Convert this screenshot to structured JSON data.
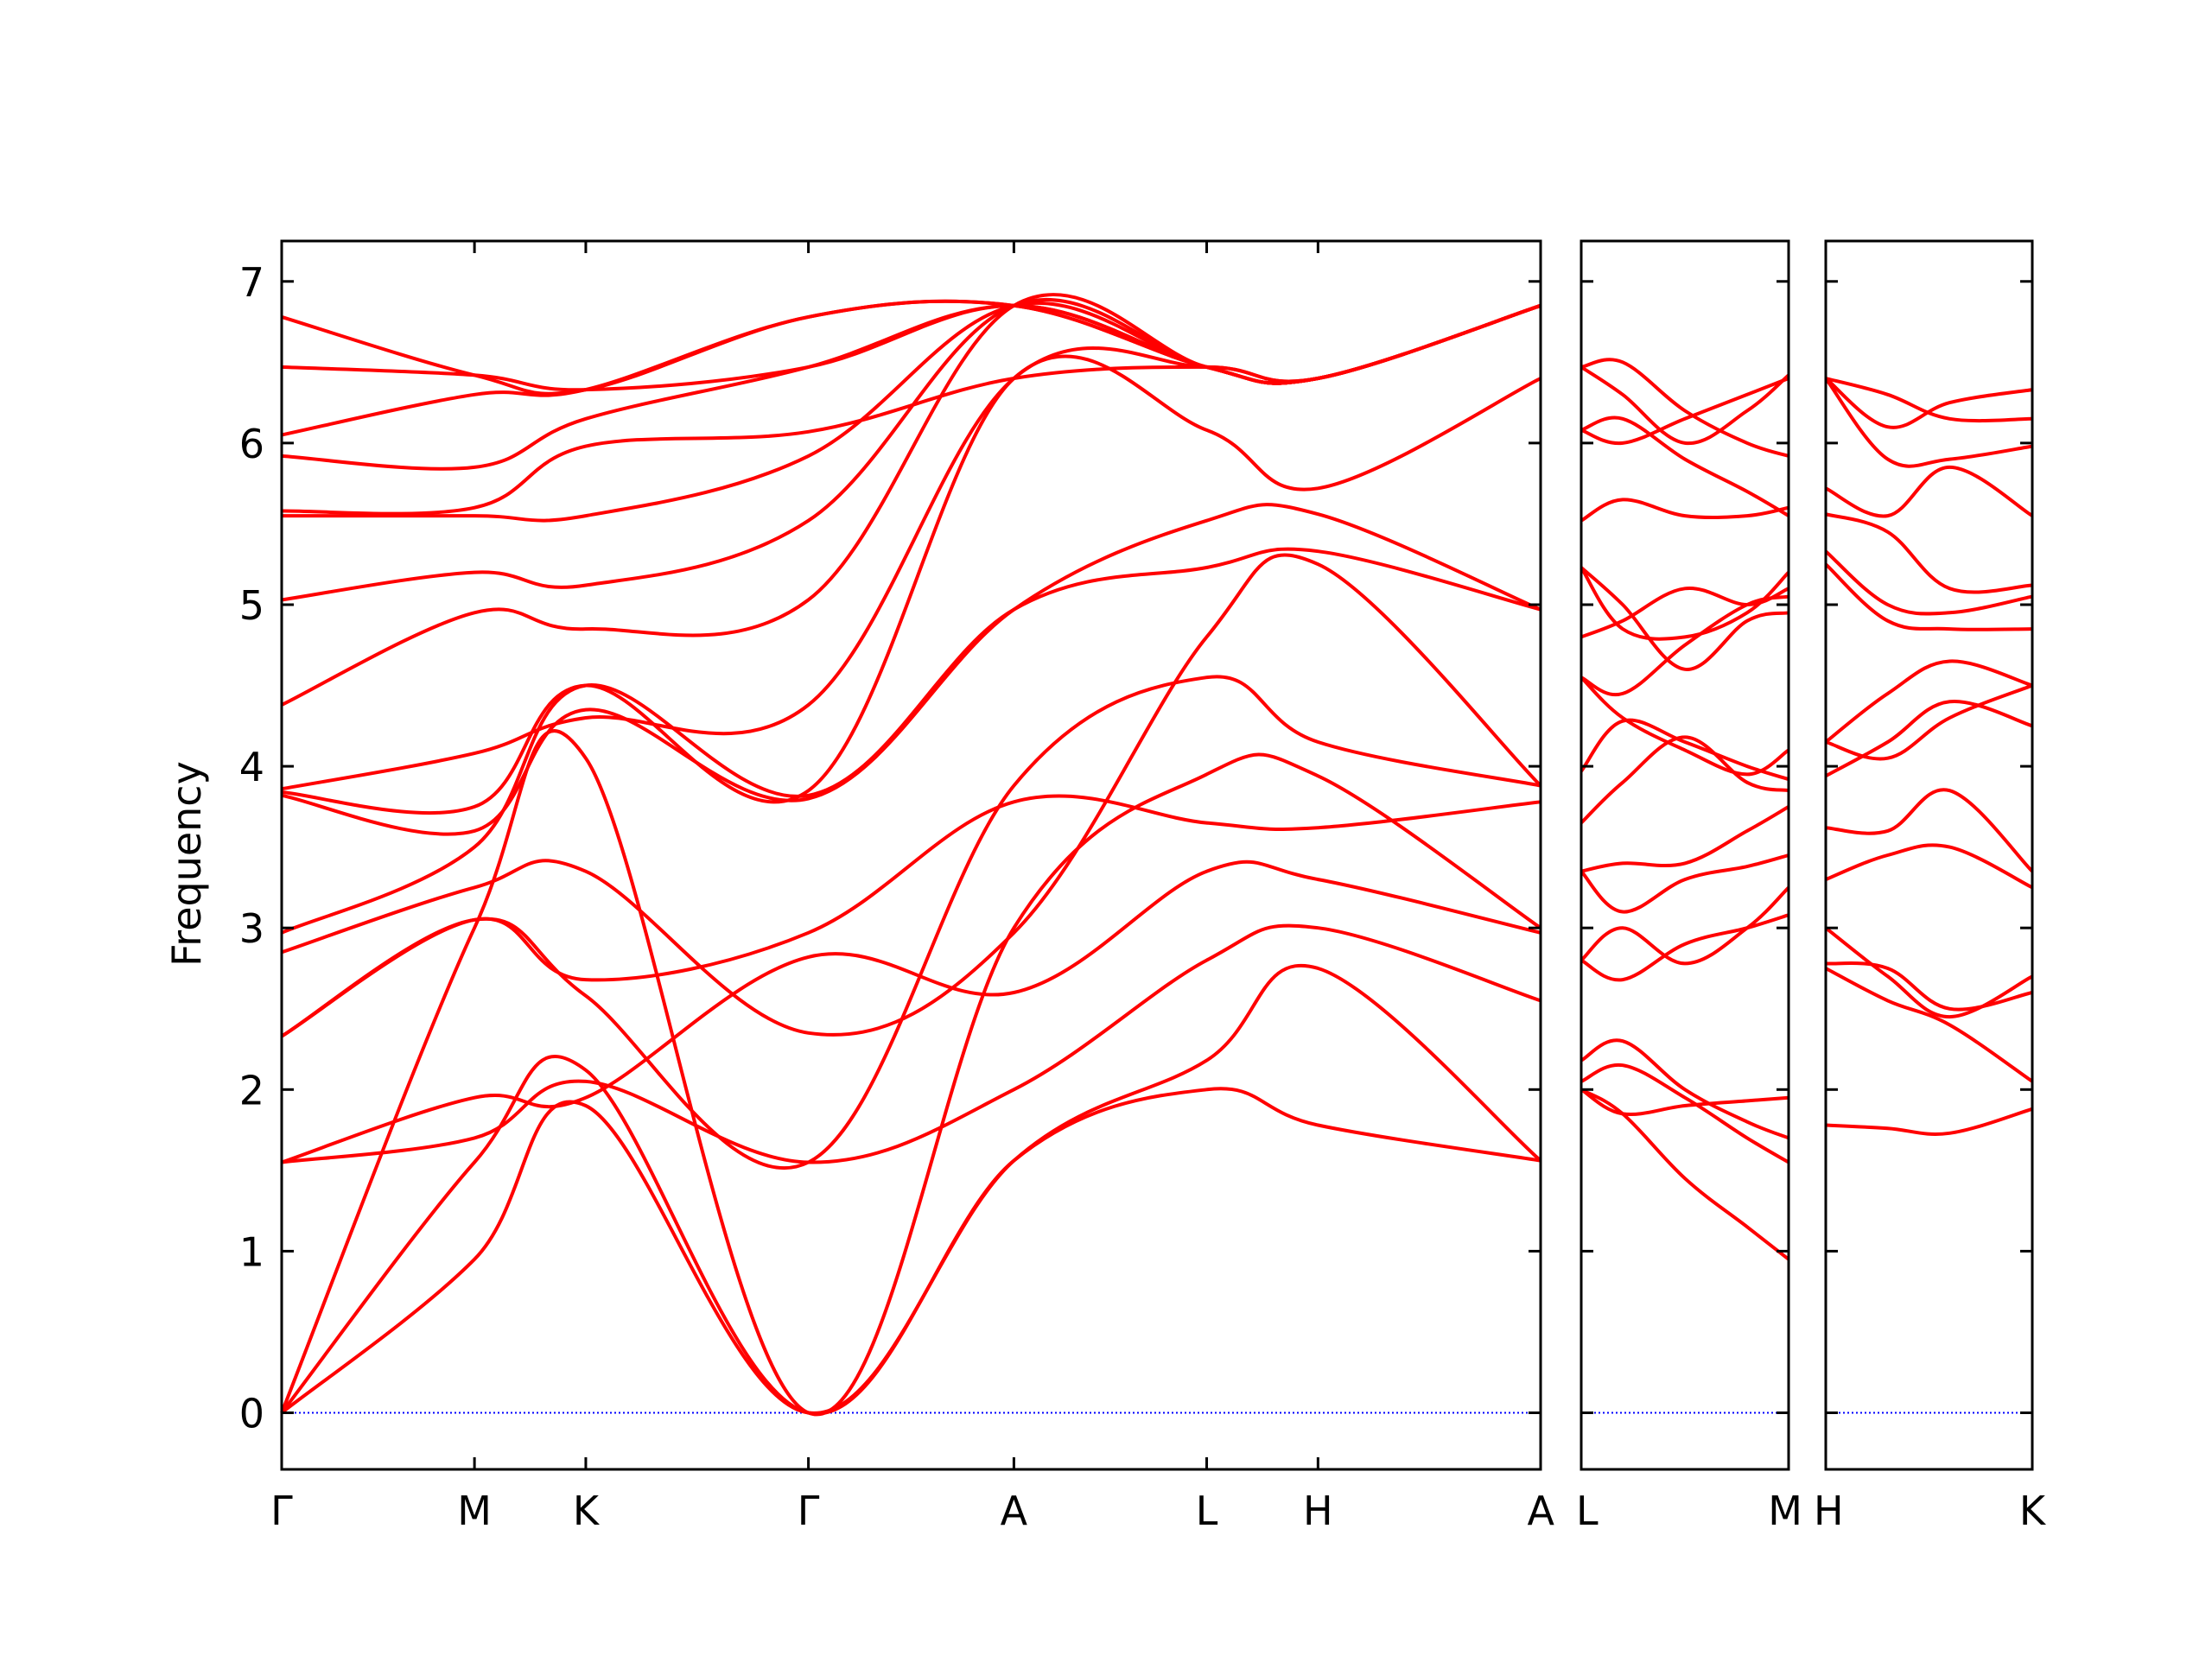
{
  "chart_data": {
    "type": "line",
    "title": "",
    "ylabel": "Frequency",
    "xlabel": "",
    "ylim": [
      -0.35,
      7.25
    ],
    "yticks": [
      0,
      1,
      2,
      3,
      4,
      5,
      6,
      7
    ],
    "grid": false,
    "legend": "none",
    "band_color": "#ff0000",
    "zero_line_color": "#0000ff",
    "panels": [
      {
        "ticks": [
          "Γ",
          "M",
          "K",
          "Γ",
          "A",
          "L",
          "H",
          "A"
        ],
        "tick_positions": [
          0.0,
          0.866,
          1.366,
          2.366,
          3.289,
          4.155,
          4.655,
          5.655
        ],
        "bands": [
          {
            "x": [
              0.0,
              0.866,
              1.366,
              2.366,
              3.289,
              4.155,
              4.655,
              5.655
            ],
            "y": [
              0.0,
              0.95,
              1.9,
              0.0,
              1.56,
              2.18,
              2.75,
              1.56
            ]
          },
          {
            "x": [
              0.0,
              0.866,
              1.366,
              2.366,
              3.289,
              4.155,
              4.655,
              5.655
            ],
            "y": [
              0.0,
              1.55,
              2.12,
              0.0,
              1.56,
              2.0,
              1.78,
              1.56
            ]
          },
          {
            "x": [
              0.0,
              0.866,
              1.366,
              2.366,
              3.289,
              4.155,
              4.655,
              5.655
            ],
            "y": [
              0.0,
              3.0,
              4.05,
              0.0,
              3.0,
              3.95,
              3.94,
              3.0
            ]
          },
          {
            "x": [
              0.0,
              0.866,
              1.366,
              2.366,
              3.289,
              4.155,
              4.655,
              5.655
            ],
            "y": [
              1.55,
              1.7,
              2.05,
              1.55,
              2.0,
              2.8,
              3.0,
              2.55
            ]
          },
          {
            "x": [
              0.0,
              0.866,
              1.366,
              2.366,
              3.289,
              4.155,
              4.655,
              5.655
            ],
            "y": [
              1.55,
              1.95,
              1.95,
              2.82,
              2.6,
              3.35,
              3.3,
              2.97
            ]
          },
          {
            "x": [
              0.0,
              0.866,
              1.366,
              2.366,
              3.289,
              4.155,
              4.655,
              5.655
            ],
            "y": [
              2.33,
              3.05,
              2.68,
              2.97,
              3.78,
              3.65,
              3.62,
              3.78
            ]
          },
          {
            "x": [
              0.0,
              0.866,
              1.366,
              2.366,
              3.289,
              4.155,
              4.655,
              5.655
            ],
            "y": [
              2.33,
              3.05,
              2.58,
              1.55,
              3.88,
              4.55,
              4.15,
              3.88
            ]
          },
          {
            "x": [
              0.0,
              0.866,
              1.366,
              2.366,
              3.289,
              4.155,
              4.655,
              5.655
            ],
            "y": [
              2.85,
              3.25,
              3.35,
              2.35,
              2.97,
              4.8,
              5.25,
              3.88
            ]
          },
          {
            "x": [
              0.0,
              0.866,
              1.366,
              2.366,
              3.289,
              4.155,
              4.655,
              5.655
            ],
            "y": [
              2.97,
              3.5,
              4.5,
              3.82,
              4.97,
              5.23,
              5.33,
              4.97
            ]
          },
          {
            "x": [
              0.0,
              0.866,
              1.366,
              2.366,
              3.289,
              4.155,
              4.655,
              5.655
            ],
            "y": [
              3.82,
              3.6,
              4.35,
              3.8,
              4.97,
              5.52,
              5.56,
              4.97
            ]
          },
          {
            "x": [
              0.0,
              0.866,
              1.366,
              2.366,
              3.289,
              4.155,
              4.655,
              5.655
            ],
            "y": [
              3.84,
              3.75,
              4.5,
              3.85,
              6.4,
              6.08,
              5.72,
              6.4
            ]
          },
          {
            "x": [
              0.0,
              0.866,
              1.366,
              2.366,
              3.289,
              4.155,
              4.655,
              5.655
            ],
            "y": [
              3.86,
              4.08,
              4.3,
              4.38,
              6.4,
              6.47,
              6.4,
              6.85
            ]
          },
          {
            "x": [
              0.0,
              0.866,
              1.366,
              2.366,
              3.289,
              4.155,
              4.655,
              5.655
            ],
            "y": [
              4.38,
              4.95,
              4.85,
              5.03,
              6.85,
              6.47,
              6.4,
              6.85
            ]
          },
          {
            "x": [
              0.0,
              0.866,
              1.366,
              2.366,
              3.289,
              4.155,
              4.655,
              5.655
            ],
            "y": [
              5.03,
              5.2,
              5.12,
              5.52,
              6.85,
              6.47,
              6.4,
              6.85
            ]
          },
          {
            "x": [
              0.0,
              0.866,
              1.366,
              2.366,
              3.289,
              4.155,
              4.655,
              5.655
            ],
            "y": [
              5.55,
              5.55,
              5.55,
              5.92,
              6.85,
              6.47,
              6.4,
              6.85
            ]
          },
          {
            "x": [
              0.0,
              0.866,
              1.366,
              2.366,
              3.289,
              4.155,
              4.655,
              5.655
            ],
            "y": [
              5.58,
              5.6,
              5.98,
              6.07,
              6.4,
              6.47,
              6.4,
              6.85
            ]
          },
          {
            "x": [
              0.0,
              0.866,
              1.366,
              2.366,
              3.289,
              4.155,
              4.655,
              5.655
            ],
            "y": [
              5.92,
              5.85,
              6.15,
              6.47,
              6.85,
              6.47,
              6.4,
              6.85
            ]
          },
          {
            "x": [
              0.0,
              0.866,
              1.366,
              2.366,
              3.289,
              4.155,
              4.655,
              5.655
            ],
            "y": [
              6.05,
              6.3,
              6.33,
              6.78,
              6.85,
              6.47,
              6.4,
              6.85
            ]
          },
          {
            "x": [
              0.0,
              0.866,
              1.366,
              2.366,
              3.289,
              4.155,
              4.655,
              5.655
            ],
            "y": [
              6.47,
              6.42,
              6.33,
              6.47,
              6.85,
              6.47,
              6.4,
              6.85
            ]
          },
          {
            "x": [
              0.0,
              0.866,
              1.366,
              2.366,
              3.289,
              4.155,
              4.655,
              5.655
            ],
            "y": [
              6.78,
              6.42,
              6.33,
              6.78,
              6.85,
              6.47,
              6.4,
              6.85
            ]
          }
        ]
      },
      {
        "ticks": [
          "L",
          "M"
        ],
        "tick_positions": [
          0.0,
          0.5
        ],
        "bands": [
          {
            "x": [
              0.0,
              0.1,
              0.25,
              0.4,
              0.5
            ],
            "y": [
              2.0,
              1.85,
              1.45,
              1.15,
              0.95
            ]
          },
          {
            "x": [
              0.0,
              0.1,
              0.25,
              0.4,
              0.5
            ],
            "y": [
              2.05,
              2.15,
              1.95,
              1.7,
              1.55
            ]
          },
          {
            "x": [
              0.0,
              0.1,
              0.25,
              0.4,
              0.5
            ],
            "y": [
              2.18,
              2.3,
              2.0,
              1.8,
              1.7
            ]
          },
          {
            "x": [
              0.0,
              0.1,
              0.25,
              0.4,
              0.5
            ],
            "y": [
              2.0,
              1.85,
              1.9,
              1.93,
              1.95
            ]
          },
          {
            "x": [
              0.0,
              0.1,
              0.25,
              0.4,
              0.5
            ],
            "y": [
              2.8,
              2.68,
              2.9,
              3.0,
              3.08
            ]
          },
          {
            "x": [
              0.0,
              0.1,
              0.25,
              0.4,
              0.5
            ],
            "y": [
              2.8,
              3.0,
              2.78,
              3.0,
              3.25
            ]
          },
          {
            "x": [
              0.0,
              0.1,
              0.25,
              0.4,
              0.5
            ],
            "y": [
              3.35,
              3.1,
              3.3,
              3.38,
              3.45
            ]
          },
          {
            "x": [
              0.0,
              0.1,
              0.25,
              0.4,
              0.5
            ],
            "y": [
              3.35,
              3.4,
              3.4,
              3.6,
              3.75
            ]
          },
          {
            "x": [
              0.0,
              0.1,
              0.25,
              0.4,
              0.5
            ],
            "y": [
              3.65,
              3.9,
              4.18,
              3.9,
              3.85
            ]
          },
          {
            "x": [
              0.0,
              0.1,
              0.25,
              0.4,
              0.5
            ],
            "y": [
              3.97,
              4.28,
              4.15,
              4.0,
              3.92
            ]
          },
          {
            "x": [
              0.0,
              0.1,
              0.25,
              0.4,
              0.5
            ],
            "y": [
              4.55,
              4.3,
              4.1,
              3.95,
              4.1
            ]
          },
          {
            "x": [
              0.0,
              0.1,
              0.25,
              0.4,
              0.5
            ],
            "y": [
              4.55,
              4.45,
              4.75,
              5.0,
              5.05
            ]
          },
          {
            "x": [
              0.0,
              0.1,
              0.25,
              0.4,
              0.5
            ],
            "y": [
              4.8,
              4.9,
              5.1,
              5.0,
              5.1
            ]
          },
          {
            "x": [
              0.0,
              0.1,
              0.25,
              0.4,
              0.5
            ],
            "y": [
              5.23,
              4.85,
              4.8,
              4.95,
              5.2
            ]
          },
          {
            "x": [
              0.0,
              0.1,
              0.25,
              0.4,
              0.5
            ],
            "y": [
              5.23,
              5.0,
              4.6,
              4.9,
              4.95
            ]
          },
          {
            "x": [
              0.0,
              0.1,
              0.25,
              0.4,
              0.5
            ],
            "y": [
              5.52,
              5.65,
              5.55,
              5.55,
              5.6
            ]
          },
          {
            "x": [
              0.0,
              0.1,
              0.25,
              0.4,
              0.5
            ],
            "y": [
              6.08,
              6.0,
              6.15,
              6.3,
              6.4
            ]
          },
          {
            "x": [
              0.0,
              0.1,
              0.25,
              0.4,
              0.5
            ],
            "y": [
              6.08,
              6.15,
              5.9,
              5.7,
              5.55
            ]
          },
          {
            "x": [
              0.0,
              0.1,
              0.25,
              0.4,
              0.5
            ],
            "y": [
              6.47,
              6.5,
              6.2,
              6.0,
              5.92
            ]
          },
          {
            "x": [
              0.0,
              0.1,
              0.25,
              0.4,
              0.5
            ],
            "y": [
              6.47,
              6.3,
              6.0,
              6.2,
              6.42
            ]
          }
        ]
      },
      {
        "ticks": [
          "H",
          "K"
        ],
        "tick_positions": [
          0.0,
          0.5
        ],
        "bands": [
          {
            "x": [
              0.0,
              0.15,
              0.3,
              0.5
            ],
            "y": [
              1.78,
              1.76,
              1.73,
              1.88
            ]
          },
          {
            "x": [
              0.0,
              0.15,
              0.3,
              0.5
            ],
            "y": [
              2.75,
              2.55,
              2.4,
              2.05
            ]
          },
          {
            "x": [
              0.0,
              0.15,
              0.3,
              0.5
            ],
            "y": [
              2.78,
              2.75,
              2.5,
              2.6
            ]
          },
          {
            "x": [
              0.0,
              0.15,
              0.3,
              0.5
            ],
            "y": [
              3.0,
              2.7,
              2.45,
              2.7
            ]
          },
          {
            "x": [
              0.0,
              0.15,
              0.3,
              0.5
            ],
            "y": [
              3.3,
              3.45,
              3.5,
              3.25
            ]
          },
          {
            "x": [
              0.0,
              0.15,
              0.3,
              0.5
            ],
            "y": [
              3.62,
              3.6,
              3.85,
              3.35
            ]
          },
          {
            "x": [
              0.0,
              0.15,
              0.3,
              0.5
            ],
            "y": [
              3.94,
              4.15,
              4.4,
              4.25
            ]
          },
          {
            "x": [
              0.0,
              0.15,
              0.3,
              0.5
            ],
            "y": [
              4.15,
              4.05,
              4.3,
              4.5
            ]
          },
          {
            "x": [
              0.0,
              0.15,
              0.3,
              0.5
            ],
            "y": [
              4.15,
              4.45,
              4.65,
              4.5
            ]
          },
          {
            "x": [
              0.0,
              0.15,
              0.3,
              0.5
            ],
            "y": [
              5.25,
              4.9,
              4.85,
              4.85
            ]
          },
          {
            "x": [
              0.0,
              0.15,
              0.3,
              0.5
            ],
            "y": [
              5.33,
              5.0,
              4.95,
              5.05
            ]
          },
          {
            "x": [
              0.0,
              0.15,
              0.3,
              0.5
            ],
            "y": [
              5.56,
              5.45,
              5.1,
              5.12
            ]
          },
          {
            "x": [
              0.0,
              0.15,
              0.3,
              0.5
            ],
            "y": [
              5.72,
              5.55,
              5.85,
              5.55
            ]
          },
          {
            "x": [
              0.0,
              0.15,
              0.3,
              0.5
            ],
            "y": [
              6.4,
              5.9,
              5.9,
              5.98
            ]
          },
          {
            "x": [
              0.0,
              0.15,
              0.3,
              0.5
            ],
            "y": [
              6.4,
              6.3,
              6.15,
              6.15
            ]
          },
          {
            "x": [
              0.0,
              0.15,
              0.3,
              0.5
            ],
            "y": [
              6.4,
              6.1,
              6.25,
              6.33
            ]
          }
        ]
      }
    ]
  }
}
